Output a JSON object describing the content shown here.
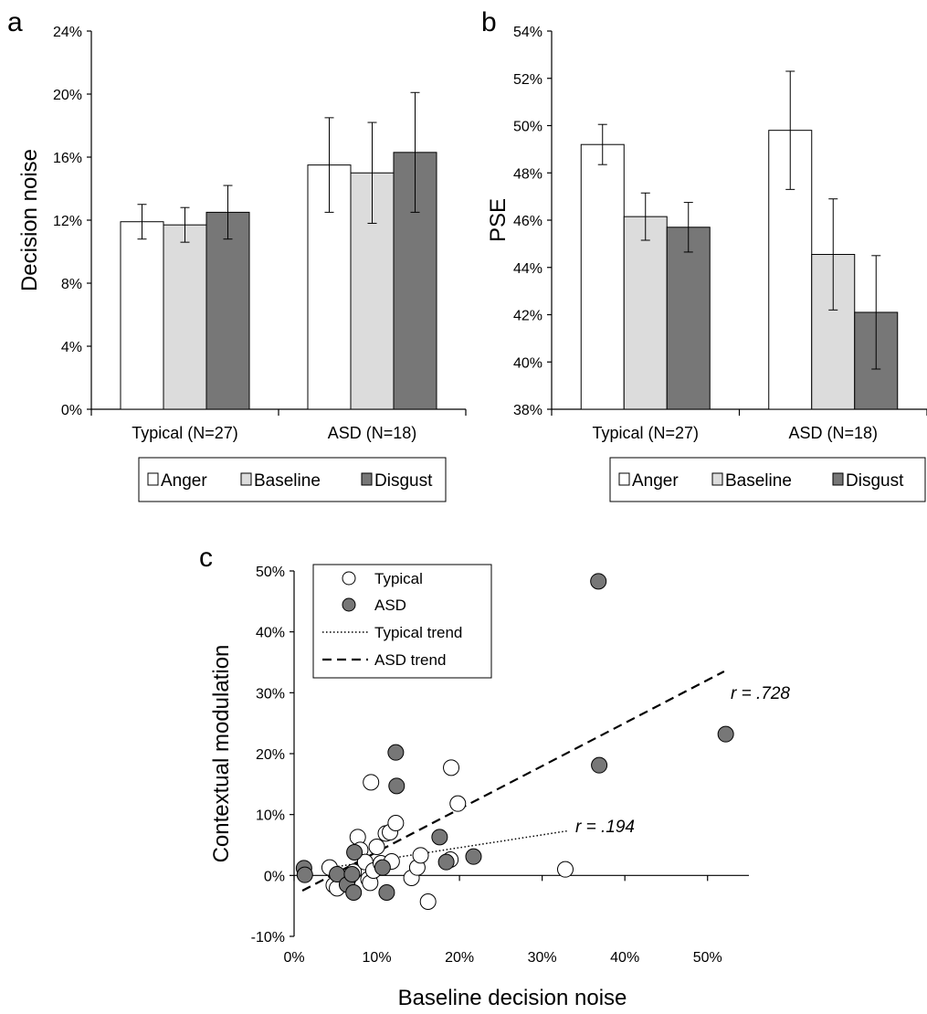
{
  "colors": {
    "Anger": "#ffffff",
    "Baseline": "#dcdcdc",
    "Disgust": "#777777",
    "typical_marker": "#ffffff",
    "asd_marker": "#777777"
  },
  "panel_a": {
    "letter": "a",
    "chart_data": {
      "type": "bar",
      "ylabel": "Decision noise",
      "categories": [
        "Typical (N=27)",
        "ASD (N=18)"
      ],
      "ylim": [
        0,
        24
      ],
      "yticks": [
        0,
        4,
        8,
        12,
        16,
        20,
        24
      ],
      "ytick_labels": [
        "0%",
        "4%",
        "8%",
        "12%",
        "16%",
        "20%",
        "24%"
      ],
      "series": [
        {
          "name": "Anger",
          "values": [
            11.9,
            15.5
          ],
          "err": [
            1.1,
            3.0
          ]
        },
        {
          "name": "Baseline",
          "values": [
            11.7,
            15.0
          ],
          "err": [
            1.1,
            3.2
          ]
        },
        {
          "name": "Disgust",
          "values": [
            12.5,
            16.3
          ],
          "err": [
            1.7,
            3.8
          ]
        }
      ],
      "legend": [
        "Anger",
        "Baseline",
        "Disgust"
      ],
      "legend_position": "bottom"
    }
  },
  "panel_b": {
    "letter": "b",
    "chart_data": {
      "type": "bar",
      "ylabel": "PSE",
      "categories": [
        "Typical (N=27)",
        "ASD (N=18)"
      ],
      "ylim": [
        38,
        54
      ],
      "yticks": [
        38,
        40,
        42,
        44,
        46,
        48,
        50,
        52,
        54
      ],
      "ytick_labels": [
        "38%",
        "40%",
        "42%",
        "44%",
        "46%",
        "48%",
        "50%",
        "52%",
        "54%"
      ],
      "series": [
        {
          "name": "Anger",
          "values": [
            49.2,
            49.8
          ],
          "err": [
            0.85,
            2.5
          ]
        },
        {
          "name": "Baseline",
          "values": [
            46.15,
            44.55
          ],
          "err": [
            1.0,
            2.35
          ]
        },
        {
          "name": "Disgust",
          "values": [
            45.7,
            42.1
          ],
          "err": [
            1.05,
            2.4
          ]
        }
      ],
      "legend": [
        "Anger",
        "Baseline",
        "Disgust"
      ],
      "legend_position": "bottom"
    }
  },
  "panel_c": {
    "letter": "c",
    "chart_data": {
      "type": "scatter",
      "xlabel": "Baseline decision noise",
      "ylabel": "Contextual modulation",
      "xlim": [
        0,
        55
      ],
      "ylim": [
        -10,
        50
      ],
      "xticks": [
        0,
        10,
        20,
        30,
        40,
        50
      ],
      "xtick_labels": [
        "0%",
        "10%",
        "20%",
        "30%",
        "40%",
        "50%"
      ],
      "yticks": [
        -10,
        0,
        10,
        20,
        30,
        40,
        50
      ],
      "ytick_labels": [
        "-10%",
        "0%",
        "10%",
        "20%",
        "30%",
        "40%",
        "50%"
      ],
      "series": [
        {
          "name": "Typical",
          "points": [
            [
              4.3,
              1.3
            ],
            [
              4.8,
              -1.6
            ],
            [
              5.2,
              -2.1
            ],
            [
              6.5,
              -0.7
            ],
            [
              7.2,
              0.6
            ],
            [
              7.7,
              6.3
            ],
            [
              8.0,
              4.2
            ],
            [
              8.6,
              2.2
            ],
            [
              9.0,
              -0.6
            ],
            [
              9.2,
              -1.2
            ],
            [
              9.3,
              15.3
            ],
            [
              9.6,
              0.8
            ],
            [
              10.0,
              4.7
            ],
            [
              10.5,
              2.0
            ],
            [
              11.1,
              6.9
            ],
            [
              11.6,
              7.1
            ],
            [
              11.8,
              2.3
            ],
            [
              12.3,
              8.6
            ],
            [
              14.2,
              -0.4
            ],
            [
              14.9,
              1.3
            ],
            [
              15.3,
              3.3
            ],
            [
              16.2,
              -4.3
            ],
            [
              18.9,
              2.6
            ],
            [
              19.0,
              17.7
            ],
            [
              19.8,
              11.8
            ],
            [
              32.8,
              1.0
            ]
          ]
        },
        {
          "name": "ASD",
          "points": [
            [
              1.2,
              1.2
            ],
            [
              1.3,
              0.1
            ],
            [
              5.2,
              0.2
            ],
            [
              6.4,
              -1.5
            ],
            [
              7.0,
              0.2
            ],
            [
              7.2,
              -2.8
            ],
            [
              7.3,
              3.8
            ],
            [
              10.7,
              1.3
            ],
            [
              11.2,
              -2.8
            ],
            [
              12.3,
              20.2
            ],
            [
              12.4,
              14.7
            ],
            [
              17.6,
              6.3
            ],
            [
              18.4,
              2.2
            ],
            [
              21.7,
              3.1
            ],
            [
              36.8,
              48.3
            ],
            [
              36.9,
              18.1
            ],
            [
              52.2,
              23.2
            ]
          ]
        }
      ],
      "trend_lines": [
        {
          "name": "Typical trend",
          "x": [
            4.0,
            33.0
          ],
          "y": [
            1.2,
            7.3
          ],
          "r_label": "r = .194"
        },
        {
          "name": "ASD trend",
          "x": [
            1.0,
            52.0
          ],
          "y": [
            -2.5,
            33.5
          ],
          "r_label": "r = .728"
        }
      ],
      "legend": [
        "Typical",
        "ASD",
        "Typical trend",
        "ASD trend"
      ],
      "legend_position": "top-left"
    }
  }
}
